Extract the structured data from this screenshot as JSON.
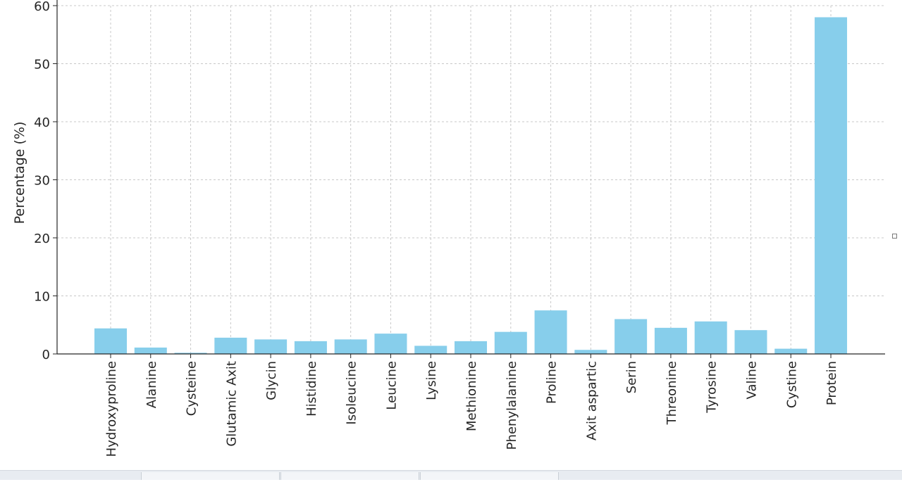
{
  "chart_data": {
    "type": "bar",
    "title": "",
    "xlabel": "",
    "ylabel": "Percentage (%)",
    "ylim": [
      0,
      60
    ],
    "yticks": [
      "0",
      "10",
      "20",
      "30",
      "40",
      "50",
      "60"
    ],
    "grid": true,
    "bar_color": "#87ceeb",
    "categories": [
      "Hydroxyproline",
      "Alanine",
      "Cysteine",
      "Glutamic Axit",
      "Glycin",
      "Histidine",
      "Isoleucine",
      "Leucine",
      "Lysine",
      "Methionine",
      "Phenylalanine",
      "Proline",
      "Axit aspartic",
      "Serin",
      "Threonine",
      "Tyrosine",
      "Valine",
      "Cystine",
      "Protein"
    ],
    "values": [
      4.4,
      1.1,
      0.2,
      2.8,
      2.5,
      2.2,
      2.5,
      3.5,
      1.4,
      2.2,
      3.8,
      7.5,
      0.7,
      6.0,
      4.5,
      5.6,
      4.1,
      0.9,
      58.0
    ]
  }
}
